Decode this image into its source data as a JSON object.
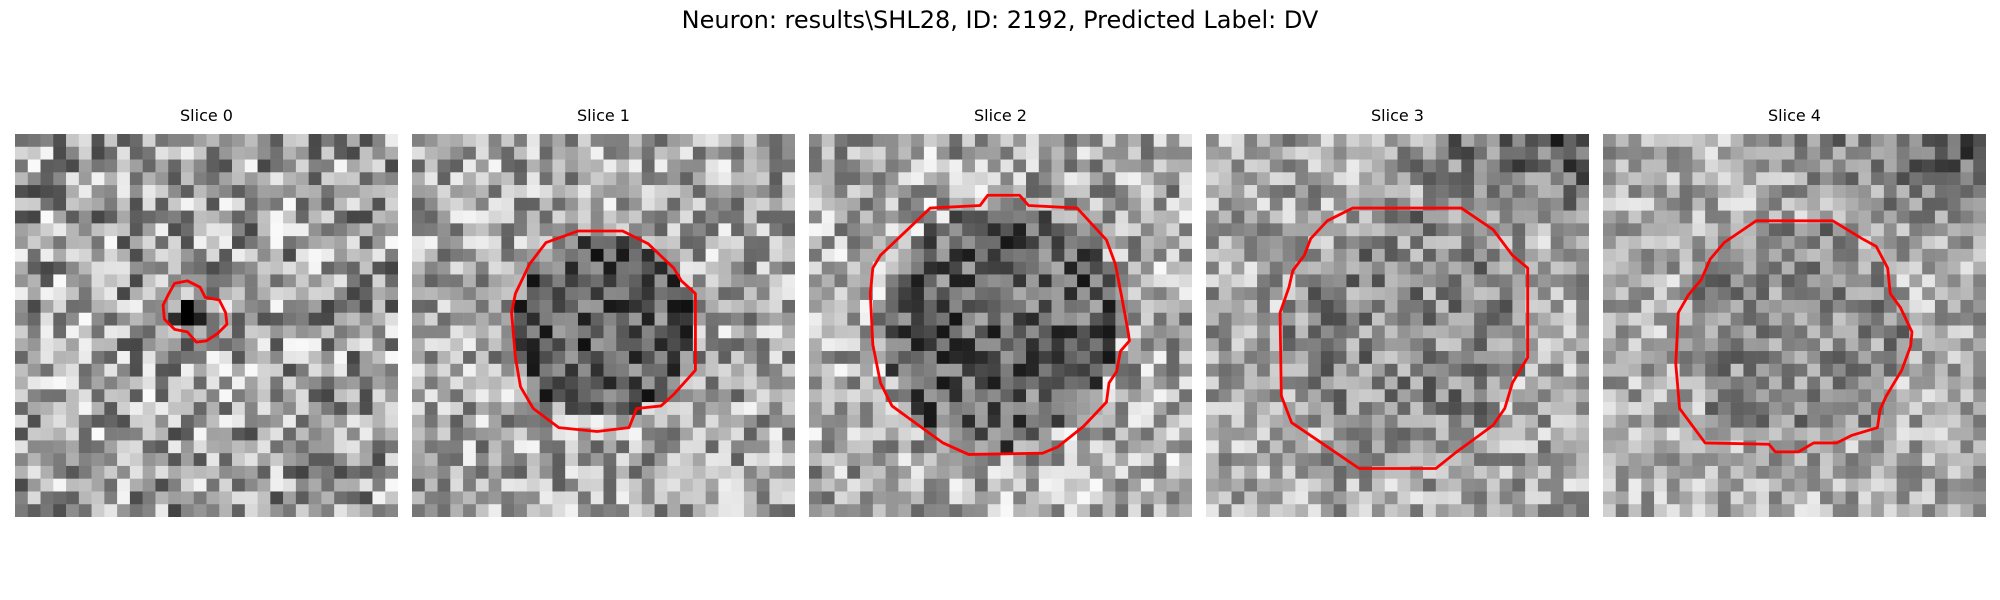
{
  "figure": {
    "title": "Neuron: results\\SHL28, ID: 2192, Predicted Label: DV",
    "colormap": "gray",
    "contour_color": "#ff0000"
  },
  "slices": [
    {
      "title": "Slice 0",
      "tone": "noise-with-small-dark-core",
      "roi_contour": "small-irregular-ring"
    },
    {
      "title": "Slice 1",
      "tone": "dark-roi-on-light-background",
      "roi_contour": "large-polygon"
    },
    {
      "title": "Slice 2",
      "tone": "dark-roi-on-light-background",
      "roi_contour": "large-polygon"
    },
    {
      "title": "Slice 3",
      "tone": "mid-grey-roi-dark-top-right",
      "roi_contour": "large-polygon"
    },
    {
      "title": "Slice 4",
      "tone": "mid-grey-roi-dark-top-right",
      "roi_contour": "medium-polygon"
    }
  ]
}
